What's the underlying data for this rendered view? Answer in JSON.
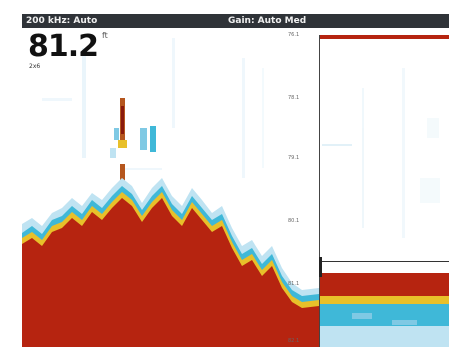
{
  "status_bar": {
    "frequency": "200 kHz: Auto",
    "gain": "Gain: Auto Med"
  },
  "depth": {
    "value": "81.2",
    "unit": "ft",
    "sub": "2x6"
  },
  "depth_scale": {
    "labels": [
      "76.1",
      "78.1",
      "79.1",
      "80.1",
      "81.1",
      "82.1"
    ]
  },
  "colors": {
    "status_bar_bg": "#2f3338",
    "bottom_red": "#b62410",
    "return_yellow": "#e8c02a",
    "return_cyan": "#3fb8d8",
    "return_light_blue": "#bfe3f2"
  }
}
